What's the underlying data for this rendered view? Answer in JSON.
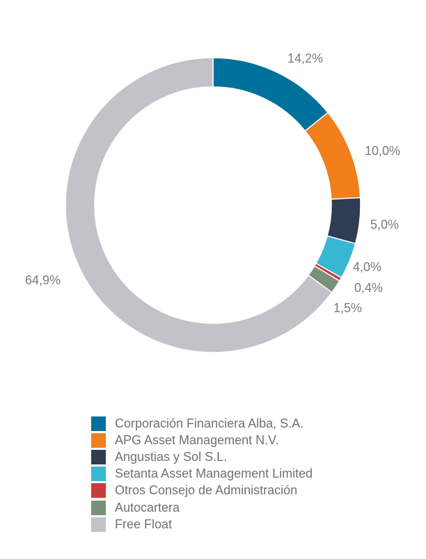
{
  "chart_data": {
    "type": "pie",
    "donut": true,
    "legend_position": "bottom",
    "slices": [
      {
        "name": "Corporación Financiera Alba, S.A.",
        "value": 14.2,
        "label": "14,2%",
        "color": "#00719b"
      },
      {
        "name": "APG Asset Management N.V.",
        "value": 10.0,
        "label": "10,0%",
        "color": "#f07f1c"
      },
      {
        "name": "Angustias y Sol S.L.",
        "value": 5.0,
        "label": "5,0%",
        "color": "#2f3d52"
      },
      {
        "name": "Setanta Asset Management Limited",
        "value": 4.0,
        "label": "4,0%",
        "color": "#38b7d2"
      },
      {
        "name": "Otros Consejo de Administración",
        "value": 0.4,
        "label": "0,4%",
        "color": "#c93b3b"
      },
      {
        "name": "Autocartera",
        "value": 1.5,
        "label": "1,5%",
        "color": "#7b907a"
      },
      {
        "name": "Free Float",
        "value": 64.9,
        "label": "64,9%",
        "color": "#c3c2c9"
      }
    ]
  }
}
